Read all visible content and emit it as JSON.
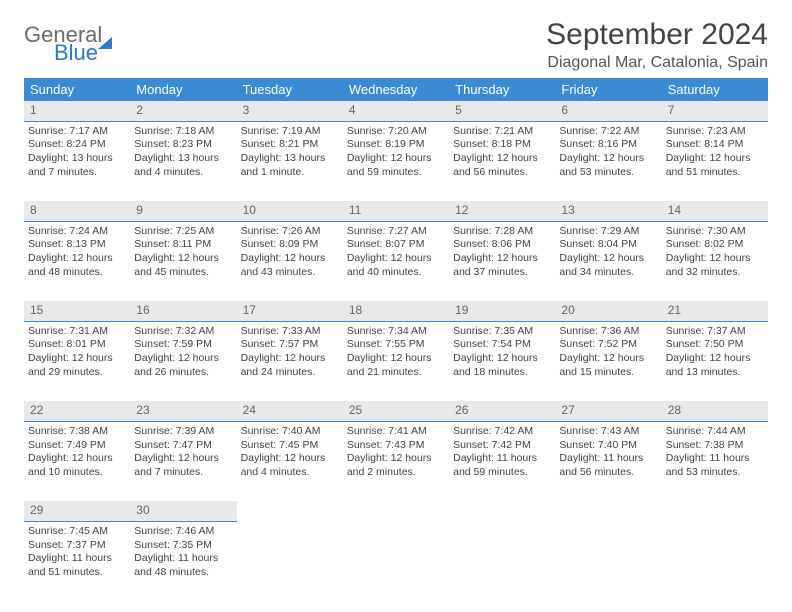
{
  "brand": {
    "part1": "General",
    "part2": "Blue"
  },
  "title": "September 2024",
  "location": "Diagonal Mar, Catalonia, Spain",
  "colors": {
    "header_bg": "#3b8bd4",
    "header_text": "#ffffff",
    "daynum_bg": "#e9e9e9",
    "daynum_border": "#3b8bd4",
    "body_text": "#444444",
    "brand_blue": "#2f78c4",
    "brand_gray": "#6b6b6b"
  },
  "weekdays": [
    "Sunday",
    "Monday",
    "Tuesday",
    "Wednesday",
    "Thursday",
    "Friday",
    "Saturday"
  ],
  "weeks": [
    {
      "nums": [
        "1",
        "2",
        "3",
        "4",
        "5",
        "6",
        "7"
      ],
      "cells": [
        {
          "sunrise": "Sunrise: 7:17 AM",
          "sunset": "Sunset: 8:24 PM",
          "day1": "Daylight: 13 hours",
          "day2": "and 7 minutes."
        },
        {
          "sunrise": "Sunrise: 7:18 AM",
          "sunset": "Sunset: 8:23 PM",
          "day1": "Daylight: 13 hours",
          "day2": "and 4 minutes."
        },
        {
          "sunrise": "Sunrise: 7:19 AM",
          "sunset": "Sunset: 8:21 PM",
          "day1": "Daylight: 13 hours",
          "day2": "and 1 minute."
        },
        {
          "sunrise": "Sunrise: 7:20 AM",
          "sunset": "Sunset: 8:19 PM",
          "day1": "Daylight: 12 hours",
          "day2": "and 59 minutes."
        },
        {
          "sunrise": "Sunrise: 7:21 AM",
          "sunset": "Sunset: 8:18 PM",
          "day1": "Daylight: 12 hours",
          "day2": "and 56 minutes."
        },
        {
          "sunrise": "Sunrise: 7:22 AM",
          "sunset": "Sunset: 8:16 PM",
          "day1": "Daylight: 12 hours",
          "day2": "and 53 minutes."
        },
        {
          "sunrise": "Sunrise: 7:23 AM",
          "sunset": "Sunset: 8:14 PM",
          "day1": "Daylight: 12 hours",
          "day2": "and 51 minutes."
        }
      ]
    },
    {
      "nums": [
        "8",
        "9",
        "10",
        "11",
        "12",
        "13",
        "14"
      ],
      "cells": [
        {
          "sunrise": "Sunrise: 7:24 AM",
          "sunset": "Sunset: 8:13 PM",
          "day1": "Daylight: 12 hours",
          "day2": "and 48 minutes."
        },
        {
          "sunrise": "Sunrise: 7:25 AM",
          "sunset": "Sunset: 8:11 PM",
          "day1": "Daylight: 12 hours",
          "day2": "and 45 minutes."
        },
        {
          "sunrise": "Sunrise: 7:26 AM",
          "sunset": "Sunset: 8:09 PM",
          "day1": "Daylight: 12 hours",
          "day2": "and 43 minutes."
        },
        {
          "sunrise": "Sunrise: 7:27 AM",
          "sunset": "Sunset: 8:07 PM",
          "day1": "Daylight: 12 hours",
          "day2": "and 40 minutes."
        },
        {
          "sunrise": "Sunrise: 7:28 AM",
          "sunset": "Sunset: 8:06 PM",
          "day1": "Daylight: 12 hours",
          "day2": "and 37 minutes."
        },
        {
          "sunrise": "Sunrise: 7:29 AM",
          "sunset": "Sunset: 8:04 PM",
          "day1": "Daylight: 12 hours",
          "day2": "and 34 minutes."
        },
        {
          "sunrise": "Sunrise: 7:30 AM",
          "sunset": "Sunset: 8:02 PM",
          "day1": "Daylight: 12 hours",
          "day2": "and 32 minutes."
        }
      ]
    },
    {
      "nums": [
        "15",
        "16",
        "17",
        "18",
        "19",
        "20",
        "21"
      ],
      "cells": [
        {
          "sunrise": "Sunrise: 7:31 AM",
          "sunset": "Sunset: 8:01 PM",
          "day1": "Daylight: 12 hours",
          "day2": "and 29 minutes."
        },
        {
          "sunrise": "Sunrise: 7:32 AM",
          "sunset": "Sunset: 7:59 PM",
          "day1": "Daylight: 12 hours",
          "day2": "and 26 minutes."
        },
        {
          "sunrise": "Sunrise: 7:33 AM",
          "sunset": "Sunset: 7:57 PM",
          "day1": "Daylight: 12 hours",
          "day2": "and 24 minutes."
        },
        {
          "sunrise": "Sunrise: 7:34 AM",
          "sunset": "Sunset: 7:55 PM",
          "day1": "Daylight: 12 hours",
          "day2": "and 21 minutes."
        },
        {
          "sunrise": "Sunrise: 7:35 AM",
          "sunset": "Sunset: 7:54 PM",
          "day1": "Daylight: 12 hours",
          "day2": "and 18 minutes."
        },
        {
          "sunrise": "Sunrise: 7:36 AM",
          "sunset": "Sunset: 7:52 PM",
          "day1": "Daylight: 12 hours",
          "day2": "and 15 minutes."
        },
        {
          "sunrise": "Sunrise: 7:37 AM",
          "sunset": "Sunset: 7:50 PM",
          "day1": "Daylight: 12 hours",
          "day2": "and 13 minutes."
        }
      ]
    },
    {
      "nums": [
        "22",
        "23",
        "24",
        "25",
        "26",
        "27",
        "28"
      ],
      "cells": [
        {
          "sunrise": "Sunrise: 7:38 AM",
          "sunset": "Sunset: 7:49 PM",
          "day1": "Daylight: 12 hours",
          "day2": "and 10 minutes."
        },
        {
          "sunrise": "Sunrise: 7:39 AM",
          "sunset": "Sunset: 7:47 PM",
          "day1": "Daylight: 12 hours",
          "day2": "and 7 minutes."
        },
        {
          "sunrise": "Sunrise: 7:40 AM",
          "sunset": "Sunset: 7:45 PM",
          "day1": "Daylight: 12 hours",
          "day2": "and 4 minutes."
        },
        {
          "sunrise": "Sunrise: 7:41 AM",
          "sunset": "Sunset: 7:43 PM",
          "day1": "Daylight: 12 hours",
          "day2": "and 2 minutes."
        },
        {
          "sunrise": "Sunrise: 7:42 AM",
          "sunset": "Sunset: 7:42 PM",
          "day1": "Daylight: 11 hours",
          "day2": "and 59 minutes."
        },
        {
          "sunrise": "Sunrise: 7:43 AM",
          "sunset": "Sunset: 7:40 PM",
          "day1": "Daylight: 11 hours",
          "day2": "and 56 minutes."
        },
        {
          "sunrise": "Sunrise: 7:44 AM",
          "sunset": "Sunset: 7:38 PM",
          "day1": "Daylight: 11 hours",
          "day2": "and 53 minutes."
        }
      ]
    },
    {
      "nums": [
        "29",
        "30",
        "",
        "",
        "",
        "",
        ""
      ],
      "cells": [
        {
          "sunrise": "Sunrise: 7:45 AM",
          "sunset": "Sunset: 7:37 PM",
          "day1": "Daylight: 11 hours",
          "day2": "and 51 minutes."
        },
        {
          "sunrise": "Sunrise: 7:46 AM",
          "sunset": "Sunset: 7:35 PM",
          "day1": "Daylight: 11 hours",
          "day2": "and 48 minutes."
        },
        null,
        null,
        null,
        null,
        null
      ]
    }
  ]
}
